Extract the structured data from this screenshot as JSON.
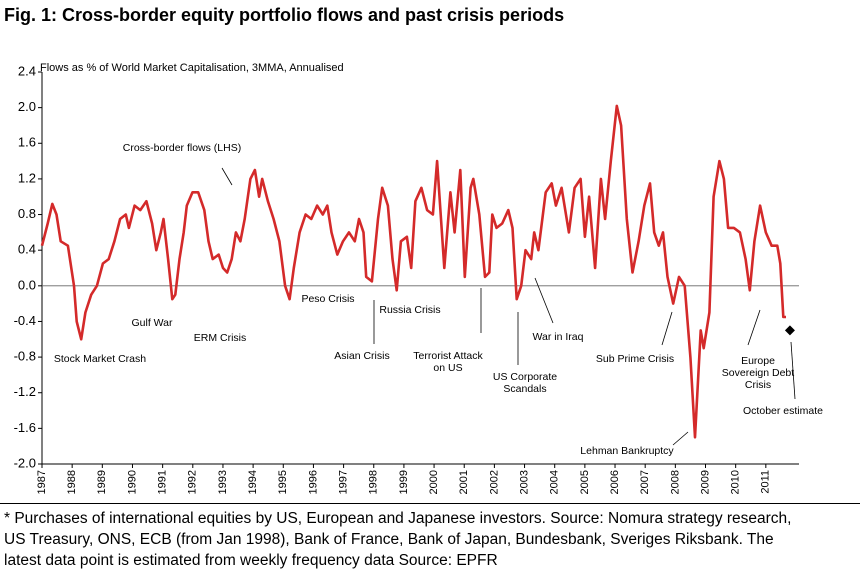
{
  "chart_data": {
    "type": "line",
    "title": "Fig. 1:  Cross-border equity portfolio flows and past crisis periods",
    "ylabel": "Flows as % of World Market Capitalisation, 3MMA, Annualised",
    "xlim": [
      1987,
      2012.1
    ],
    "xticks": [
      1987,
      1988,
      1989,
      1990,
      1991,
      1992,
      1993,
      1994,
      1995,
      1996,
      1997,
      1998,
      1999,
      2000,
      2001,
      2002,
      2003,
      2004,
      2005,
      2006,
      2007,
      2008,
      2009,
      2010,
      2011
    ],
    "ylim": [
      -2.0,
      2.4
    ],
    "yticks": [
      {
        "value": 2.4,
        "label": "2.4"
      },
      {
        "value": 2.0,
        "label": "2.0"
      },
      {
        "value": 1.6,
        "label": "1.6"
      },
      {
        "value": 1.2,
        "label": "1.2"
      },
      {
        "value": 0.8,
        "label": "0.8"
      },
      {
        "value": 0.4,
        "label": "0.4"
      },
      {
        "value": 0.0,
        "label": "0.0"
      },
      {
        "value": -0.4,
        "label": "-0.4"
      },
      {
        "value": -0.8,
        "label": "-0.8"
      },
      {
        "value": -1.2,
        "label": "-1.2"
      },
      {
        "value": -1.6,
        "label": "-1.6"
      },
      {
        "value": -2.0,
        "label": "-2.0"
      }
    ],
    "x": [
      1987.0,
      1987.19,
      1987.34,
      1987.48,
      1987.62,
      1987.86,
      1988.06,
      1988.15,
      1988.3,
      1988.44,
      1988.63,
      1988.82,
      1989.02,
      1989.21,
      1989.4,
      1989.59,
      1989.78,
      1989.88,
      1990.07,
      1990.26,
      1990.46,
      1990.65,
      1990.79,
      1990.94,
      1991.03,
      1991.18,
      1991.32,
      1991.42,
      1991.56,
      1991.7,
      1991.8,
      1991.99,
      1992.18,
      1992.38,
      1992.52,
      1992.66,
      1992.86,
      1993.0,
      1993.14,
      1993.29,
      1993.43,
      1993.58,
      1993.72,
      1993.91,
      1994.06,
      1994.2,
      1994.3,
      1994.49,
      1994.68,
      1994.87,
      1995.06,
      1995.21,
      1995.35,
      1995.54,
      1995.74,
      1995.93,
      1996.12,
      1996.31,
      1996.46,
      1996.6,
      1996.79,
      1996.98,
      1997.18,
      1997.37,
      1997.51,
      1997.66,
      1997.75,
      1997.94,
      1998.14,
      1998.28,
      1998.47,
      1998.62,
      1998.76,
      1998.9,
      1999.1,
      1999.24,
      1999.38,
      1999.58,
      1999.77,
      1999.96,
      2000.1,
      2000.2,
      2000.34,
      2000.54,
      2000.68,
      2000.87,
      2001.02,
      2001.21,
      2001.3,
      2001.5,
      2001.69,
      2001.83,
      2001.93,
      2002.07,
      2002.26,
      2002.46,
      2002.6,
      2002.74,
      2002.89,
      2003.03,
      2003.22,
      2003.32,
      2003.46,
      2003.7,
      2003.9,
      2004.04,
      2004.23,
      2004.47,
      2004.66,
      2004.86,
      2005.0,
      2005.14,
      2005.34,
      2005.53,
      2005.67,
      2005.86,
      2006.06,
      2006.2,
      2006.39,
      2006.58,
      2006.78,
      2006.97,
      2007.16,
      2007.3,
      2007.45,
      2007.59,
      2007.74,
      2007.93,
      2008.12,
      2008.31,
      2008.5,
      2008.65,
      2008.84,
      2008.94,
      2009.13,
      2009.27,
      2009.46,
      2009.61,
      2009.75,
      2009.94,
      2010.14,
      2010.33,
      2010.47,
      2010.62,
      2010.81,
      2011.0,
      2011.19,
      2011.38,
      2011.48,
      2011.58,
      2011.67
    ],
    "series": [
      {
        "name": "Cross-border flows (LHS)",
        "color": "#d42a2a",
        "values": [
          0.45,
          0.7,
          0.92,
          0.8,
          0.5,
          0.45,
          0.0,
          -0.4,
          -0.6,
          -0.3,
          -0.1,
          0.0,
          0.25,
          0.3,
          0.5,
          0.75,
          0.8,
          0.65,
          0.9,
          0.85,
          0.95,
          0.7,
          0.4,
          0.6,
          0.75,
          0.3,
          -0.15,
          -0.1,
          0.3,
          0.6,
          0.9,
          1.05,
          1.05,
          0.85,
          0.5,
          0.3,
          0.35,
          0.2,
          0.15,
          0.3,
          0.6,
          0.5,
          0.75,
          1.2,
          1.3,
          1.0,
          1.2,
          0.95,
          0.75,
          0.5,
          0.0,
          -0.15,
          0.2,
          0.6,
          0.8,
          0.75,
          0.9,
          0.8,
          0.9,
          0.6,
          0.35,
          0.5,
          0.6,
          0.5,
          0.75,
          0.6,
          0.1,
          0.05,
          0.75,
          1.1,
          0.9,
          0.3,
          -0.05,
          0.5,
          0.55,
          0.2,
          0.95,
          1.1,
          0.85,
          0.8,
          1.4,
          0.9,
          0.2,
          1.05,
          0.6,
          1.3,
          0.1,
          1.1,
          1.2,
          0.8,
          0.1,
          0.15,
          0.8,
          0.65,
          0.7,
          0.85,
          0.65,
          -0.15,
          0.0,
          0.4,
          0.3,
          0.6,
          0.4,
          1.05,
          1.15,
          0.9,
          1.1,
          0.6,
          1.1,
          1.2,
          0.55,
          1.0,
          0.2,
          1.2,
          0.75,
          1.4,
          2.02,
          1.8,
          0.75,
          0.15,
          0.5,
          0.9,
          1.15,
          0.6,
          0.45,
          0.6,
          0.1,
          -0.2,
          0.1,
          0.0,
          -0.8,
          -1.7,
          -0.5,
          -0.7,
          -0.3,
          1.0,
          1.4,
          1.2,
          0.65,
          0.65,
          0.6,
          0.3,
          -0.05,
          0.5,
          0.9,
          0.6,
          0.45,
          0.45,
          0.25,
          -0.35,
          -0.35
        ]
      }
    ],
    "estimate": {
      "x": 2011.8,
      "value": -0.5
    },
    "annotations": [
      [
        "Cross-border flows (LHS)"
      ],
      [
        "Stock Market Crash"
      ],
      [
        "Gulf War"
      ],
      [
        "ERM Crisis"
      ],
      [
        "Peso Crisis"
      ],
      [
        "Asian Crisis"
      ],
      [
        "Russia Crisis"
      ],
      [
        "Terrorist Attack",
        "on US"
      ],
      [
        "US Corporate",
        "Scandals"
      ],
      [
        "War in Iraq"
      ],
      [
        "Sub Prime Crisis"
      ],
      [
        "Lehman Bankruptcy"
      ],
      [
        "Europe",
        "Sovereign Debt",
        "Crisis"
      ],
      [
        "October estimate"
      ]
    ],
    "footnote": "* Purchases of international equities by US, European and Japanese investors.  Source: Nomura strategy research, US Treasury, ONS, ECB (from Jan 1998), Bank of France, Bank of Japan, Bundesbank, Sveriges Riksbank. The latest data point is estimated from weekly frequency data Source: EPFR",
    "grid": false
  }
}
